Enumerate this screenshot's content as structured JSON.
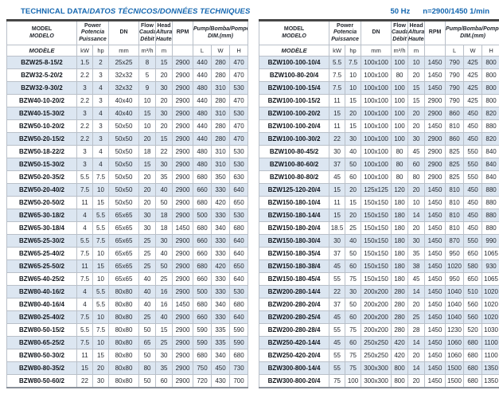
{
  "title": {
    "part1": "TECHNICAL DATA/",
    "part2": "DATOS TÉCNICOS/DONNÉES TECHNIQUES"
  },
  "note": {
    "hz": "50 Hz",
    "speed": "n=2900/1450 1/min"
  },
  "header": {
    "model": [
      "MODEL",
      "MODELO",
      "MODÈLE"
    ],
    "power": [
      "Power",
      "Potencia",
      "Puissance"
    ],
    "power_units": [
      "kW",
      "hp"
    ],
    "dn": "DN",
    "dn_unit": "mm",
    "flow": [
      "Flow",
      "Caudal",
      "Débit"
    ],
    "flow_unit": "m³/h",
    "head": [
      "Head",
      "Altura",
      "Hauteur"
    ],
    "head_unit": "m",
    "rpm": "RPM",
    "dim": [
      "Pump/Bomba/Pompe",
      "DIM.(mm)"
    ],
    "dim_units": [
      "L",
      "W",
      "H"
    ]
  },
  "columns": [
    "model",
    "power_kW",
    "power_hp",
    "DN_mm",
    "flow_m3h",
    "head_m",
    "rpm",
    "L_mm",
    "W_mm",
    "H_mm"
  ],
  "tables": {
    "left": {
      "rows": [
        [
          "BZW25-8-15/2",
          "1.5",
          "2",
          "25x25",
          "8",
          "15",
          "2900",
          "440",
          "280",
          "470"
        ],
        [
          "BZW32-5-20/2",
          "2.2",
          "3",
          "32x32",
          "5",
          "20",
          "2900",
          "440",
          "280",
          "470"
        ],
        [
          "BZW32-9-30/2",
          "3",
          "4",
          "32x32",
          "9",
          "30",
          "2900",
          "480",
          "310",
          "530"
        ],
        [
          "BZW40-10-20/2",
          "2.2",
          "3",
          "40x40",
          "10",
          "20",
          "2900",
          "440",
          "280",
          "470"
        ],
        [
          "BZW40-15-30/2",
          "3",
          "4",
          "40x40",
          "15",
          "30",
          "2900",
          "480",
          "310",
          "530"
        ],
        [
          "BZW50-10-20/2",
          "2.2",
          "3",
          "50x50",
          "10",
          "20",
          "2900",
          "440",
          "280",
          "470"
        ],
        [
          "BZW50-20-15/2",
          "2.2",
          "3",
          "50x50",
          "20",
          "15",
          "2900",
          "440",
          "280",
          "470"
        ],
        [
          "BZW50-18-22/2",
          "3",
          "4",
          "50x50",
          "18",
          "22",
          "2900",
          "480",
          "310",
          "530"
        ],
        [
          "BZW50-15-30/2",
          "3",
          "4",
          "50x50",
          "15",
          "30",
          "2900",
          "480",
          "310",
          "530"
        ],
        [
          "BZW50-20-35/2",
          "5.5",
          "7.5",
          "50x50",
          "20",
          "35",
          "2900",
          "680",
          "350",
          "630"
        ],
        [
          "BZW50-20-40/2",
          "7.5",
          "10",
          "50x50",
          "20",
          "40",
          "2900",
          "660",
          "330",
          "640"
        ],
        [
          "BZW50-20-50/2",
          "11",
          "15",
          "50x50",
          "20",
          "50",
          "2900",
          "680",
          "420",
          "650"
        ],
        [
          "BZW65-30-18/2",
          "4",
          "5.5",
          "65x65",
          "30",
          "18",
          "2900",
          "500",
          "330",
          "530"
        ],
        [
          "BZW65-30-18/4",
          "4",
          "5.5",
          "65x65",
          "30",
          "18",
          "1450",
          "680",
          "340",
          "680"
        ],
        [
          "BZW65-25-30/2",
          "5.5",
          "7.5",
          "65x65",
          "25",
          "30",
          "2900",
          "660",
          "330",
          "640"
        ],
        [
          "BZW65-25-40/2",
          "7.5",
          "10",
          "65x65",
          "25",
          "40",
          "2900",
          "660",
          "330",
          "640"
        ],
        [
          "BZW65-25-50/2",
          "11",
          "15",
          "65x65",
          "25",
          "50",
          "2900",
          "680",
          "420",
          "650"
        ],
        [
          "BZW65-40-25/2",
          "7.5",
          "10",
          "65x65",
          "40",
          "25",
          "2900",
          "660",
          "330",
          "640"
        ],
        [
          "BZW80-40-16/2",
          "4",
          "5.5",
          "80x80",
          "40",
          "16",
          "2900",
          "500",
          "330",
          "530"
        ],
        [
          "BZW80-40-16/4",
          "4",
          "5.5",
          "80x80",
          "40",
          "16",
          "1450",
          "680",
          "340",
          "680"
        ],
        [
          "BZW80-25-40/2",
          "7.5",
          "10",
          "80x80",
          "25",
          "40",
          "2900",
          "660",
          "330",
          "640"
        ],
        [
          "BZW80-50-15/2",
          "5.5",
          "7.5",
          "80x80",
          "50",
          "15",
          "2900",
          "590",
          "335",
          "590"
        ],
        [
          "BZW80-65-25/2",
          "7.5",
          "10",
          "80x80",
          "65",
          "25",
          "2900",
          "590",
          "335",
          "590"
        ],
        [
          "BZW80-50-30/2",
          "11",
          "15",
          "80x80",
          "50",
          "30",
          "2900",
          "680",
          "340",
          "680"
        ],
        [
          "BZW80-80-35/2",
          "15",
          "20",
          "80x80",
          "80",
          "35",
          "2900",
          "750",
          "450",
          "730"
        ],
        [
          "BZW80-50-60/2",
          "22",
          "30",
          "80x80",
          "50",
          "60",
          "2900",
          "720",
          "430",
          "700"
        ]
      ]
    },
    "right": {
      "rows": [
        [
          "BZW100-100-10/4",
          "5.5",
          "7.5",
          "100x100",
          "100",
          "10",
          "1450",
          "790",
          "425",
          "800"
        ],
        [
          "BZW100-80-20/4",
          "7.5",
          "10",
          "100x100",
          "80",
          "20",
          "1450",
          "790",
          "425",
          "800"
        ],
        [
          "BZW100-100-15/4",
          "7.5",
          "10",
          "100x100",
          "100",
          "15",
          "1450",
          "790",
          "425",
          "800"
        ],
        [
          "BZW100-100-15/2",
          "11",
          "15",
          "100x100",
          "100",
          "15",
          "2900",
          "790",
          "425",
          "800"
        ],
        [
          "BZW100-100-20/2",
          "15",
          "20",
          "100x100",
          "100",
          "20",
          "2900",
          "860",
          "450",
          "820"
        ],
        [
          "BZW100-100-20/4",
          "11",
          "15",
          "100x100",
          "100",
          "20",
          "1450",
          "810",
          "450",
          "880"
        ],
        [
          "BZW100-100-30/2",
          "22",
          "30",
          "100x100",
          "100",
          "30",
          "2900",
          "860",
          "450",
          "820"
        ],
        [
          "BZW100-80-45/2",
          "30",
          "40",
          "100x100",
          "80",
          "45",
          "2900",
          "825",
          "550",
          "840"
        ],
        [
          "BZW100-80-60/2",
          "37",
          "50",
          "100x100",
          "80",
          "60",
          "2900",
          "825",
          "550",
          "840"
        ],
        [
          "BZW100-80-80/2",
          "45",
          "60",
          "100x100",
          "80",
          "80",
          "2900",
          "825",
          "550",
          "840"
        ],
        [
          "BZW125-120-20/4",
          "15",
          "20",
          "125x125",
          "120",
          "20",
          "1450",
          "810",
          "450",
          "880"
        ],
        [
          "BZW150-180-10/4",
          "11",
          "15",
          "150x150",
          "180",
          "10",
          "1450",
          "810",
          "450",
          "880"
        ],
        [
          "BZW150-180-14/4",
          "15",
          "20",
          "150x150",
          "180",
          "14",
          "1450",
          "810",
          "450",
          "880"
        ],
        [
          "BZW150-180-20/4",
          "18.5",
          "25",
          "150x150",
          "180",
          "20",
          "1450",
          "810",
          "450",
          "880"
        ],
        [
          "BZW150-180-30/4",
          "30",
          "40",
          "150x150",
          "180",
          "30",
          "1450",
          "870",
          "550",
          "990"
        ],
        [
          "BZW150-180-35/4",
          "37",
          "50",
          "150x150",
          "180",
          "35",
          "1450",
          "950",
          "650",
          "1065"
        ],
        [
          "BZW150-180-38/4",
          "45",
          "60",
          "150x150",
          "180",
          "38",
          "1450",
          "1020",
          "580",
          "930"
        ],
        [
          "BZW150-180-45/4",
          "55",
          "75",
          "150x150",
          "180",
          "45",
          "1450",
          "950",
          "650",
          "1065"
        ],
        [
          "BZW200-280-14/4",
          "22",
          "30",
          "200x200",
          "280",
          "14",
          "1450",
          "1040",
          "510",
          "1020"
        ],
        [
          "BZW200-280-20/4",
          "37",
          "50",
          "200x200",
          "280",
          "20",
          "1450",
          "1040",
          "560",
          "1020"
        ],
        [
          "BZW200-280-25/4",
          "45",
          "60",
          "200x200",
          "280",
          "25",
          "1450",
          "1040",
          "560",
          "1020"
        ],
        [
          "BZW200-280-28/4",
          "55",
          "75",
          "200x200",
          "280",
          "28",
          "1450",
          "1230",
          "520",
          "1030"
        ],
        [
          "BZW250-420-14/4",
          "45",
          "60",
          "250x250",
          "420",
          "14",
          "1450",
          "1060",
          "680",
          "1100"
        ],
        [
          "BZW250-420-20/4",
          "55",
          "75",
          "250x250",
          "420",
          "20",
          "1450",
          "1060",
          "680",
          "1100"
        ],
        [
          "BZW300-800-14/4",
          "55",
          "75",
          "300x300",
          "800",
          "14",
          "1450",
          "1500",
          "680",
          "1350"
        ],
        [
          "BZW300-800-20/4",
          "75",
          "100",
          "300x300",
          "800",
          "20",
          "1450",
          "1500",
          "680",
          "1350"
        ]
      ]
    }
  },
  "colors": {
    "accent_blue": "#1668b1",
    "row_alt_blue": "#dce6f1",
    "grid_border": "#b9c0c9",
    "table_top_border": "#474747",
    "text": "#23272e"
  }
}
